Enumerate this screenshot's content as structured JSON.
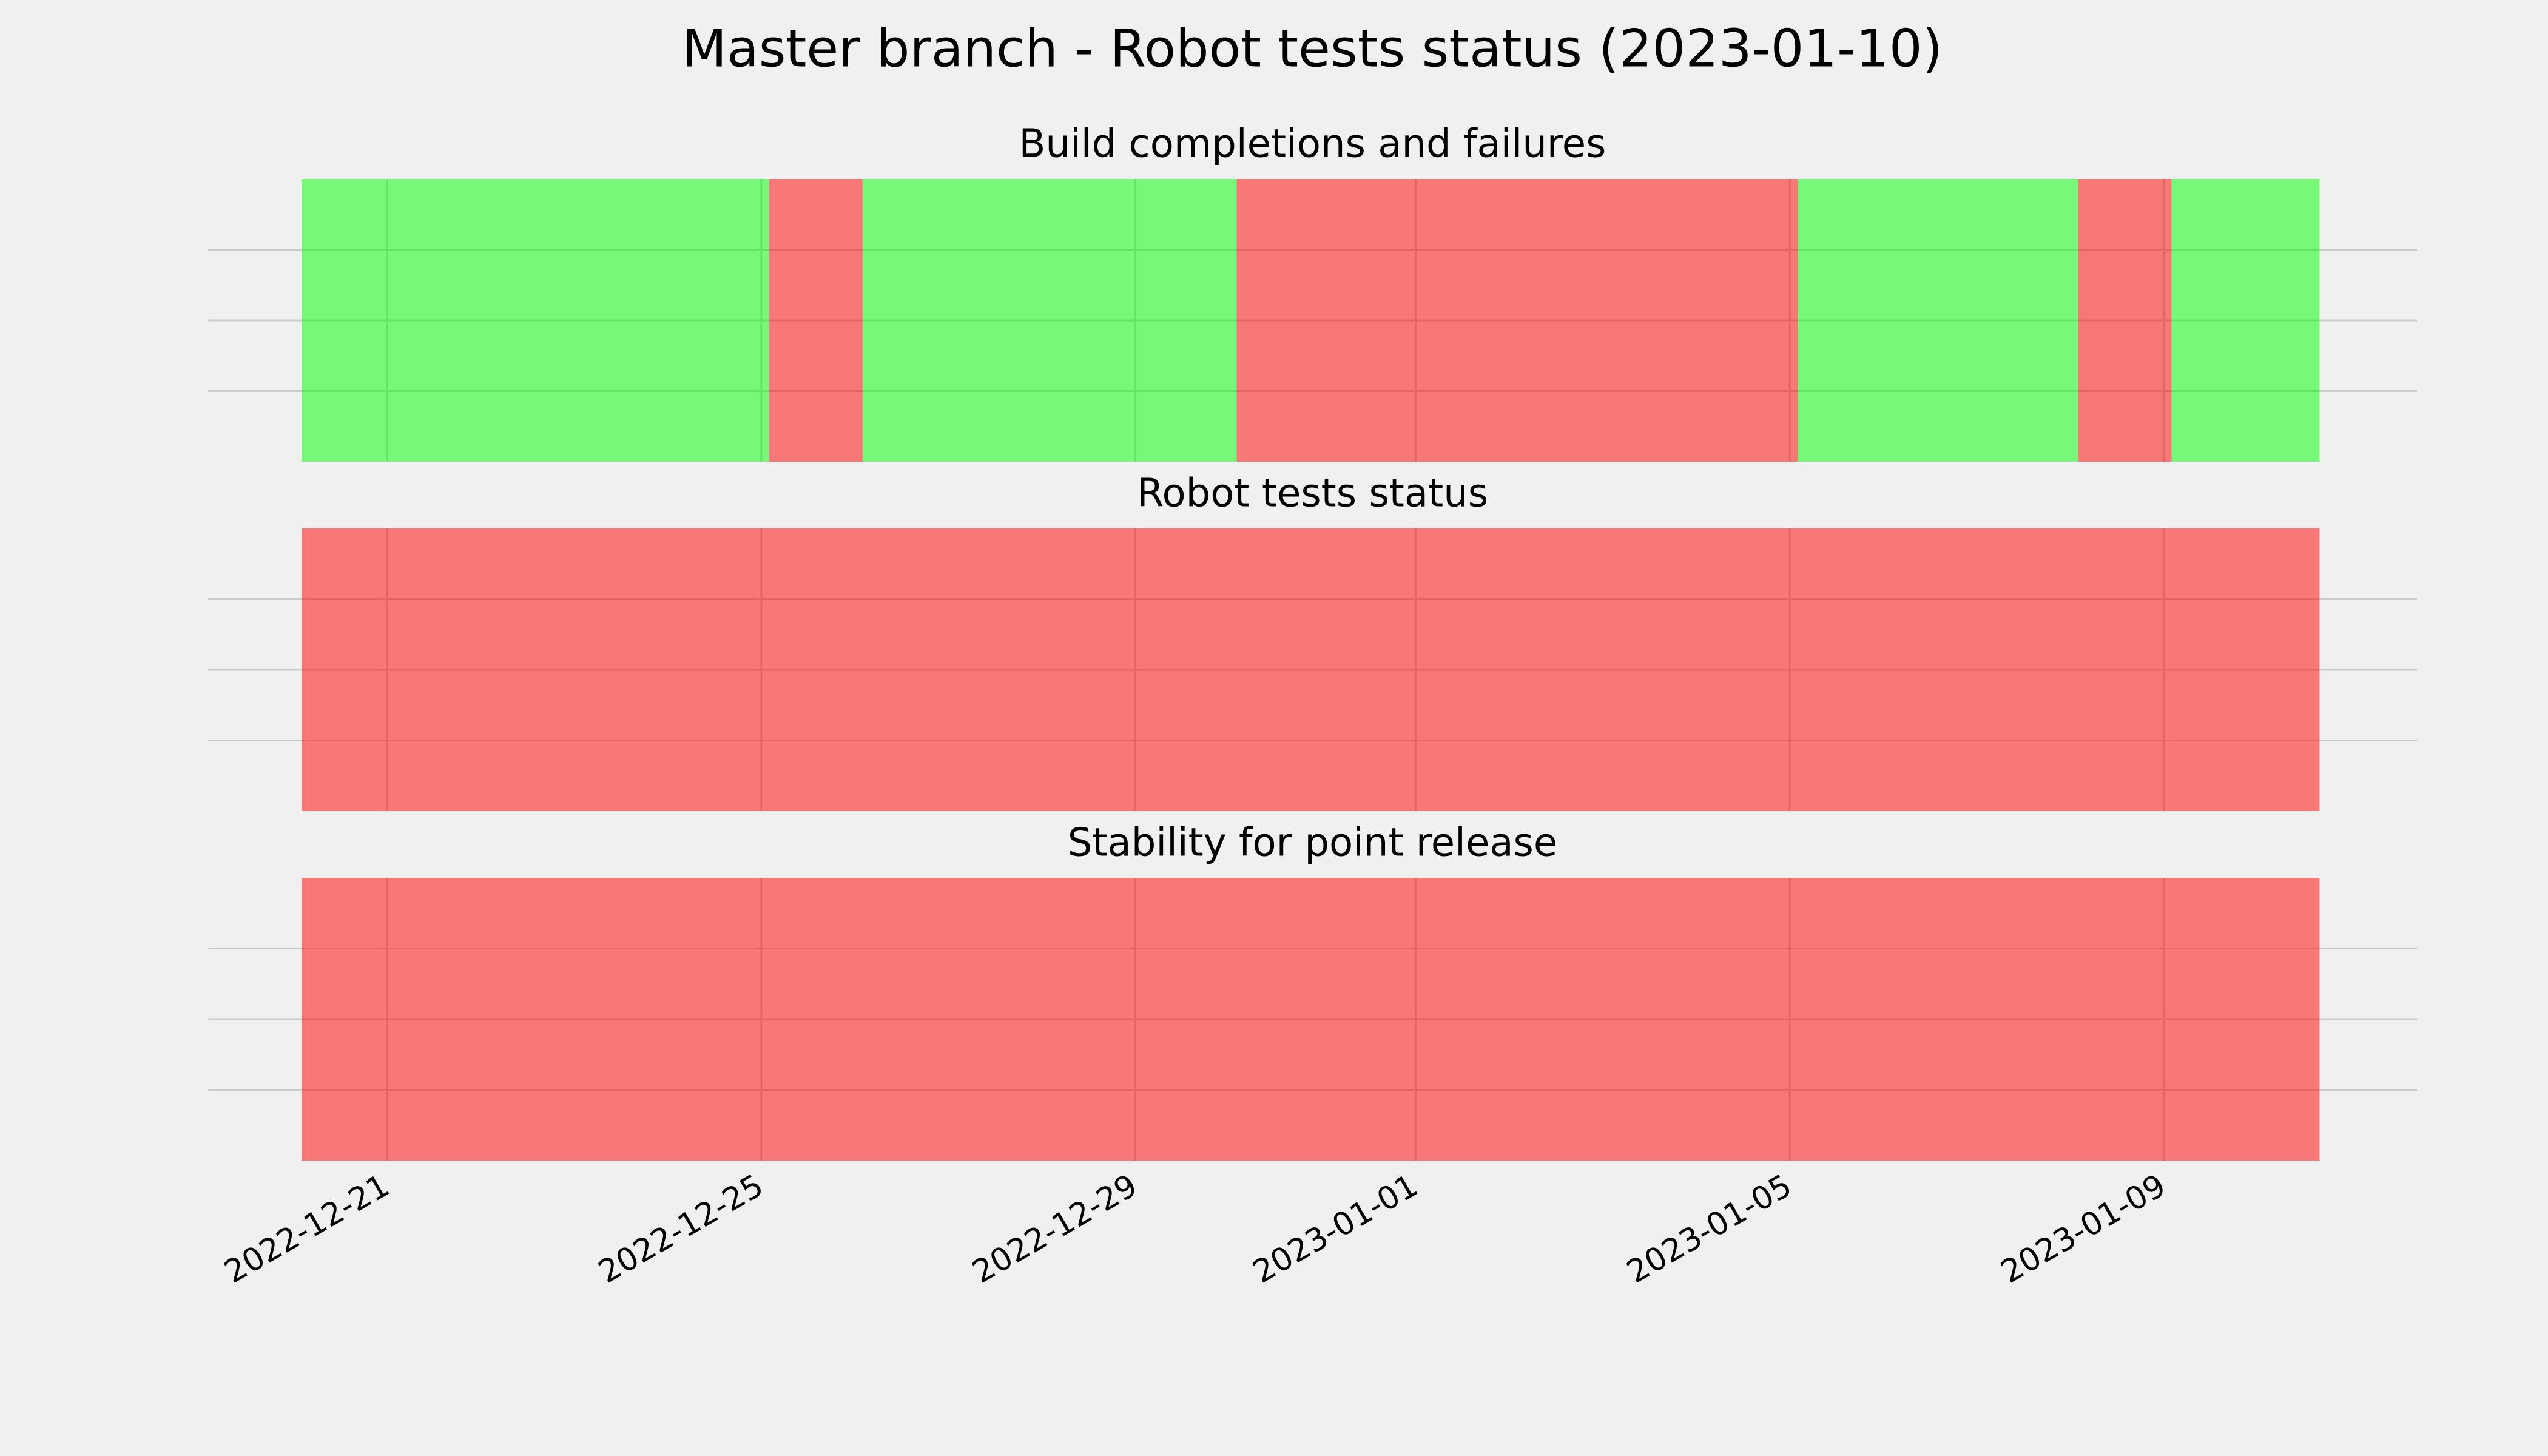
{
  "title": "Master branch - Robot tests status (2023-01-10)",
  "chart_data": [
    {
      "type": "timeline",
      "title": "Build completions and failures",
      "spans": [
        {
          "start": "2022-12-20T02:00",
          "end": "2022-12-25T02:00",
          "color": "#00ff00"
        },
        {
          "start": "2022-12-25T02:00",
          "end": "2022-12-26T02:00",
          "color": "#ff0000"
        },
        {
          "start": "2022-12-26T02:00",
          "end": "2022-12-30T02:00",
          "color": "#00ff00"
        },
        {
          "start": "2022-12-30T02:00",
          "end": "2023-01-05T02:00",
          "color": "#ff0000"
        },
        {
          "start": "2023-01-05T02:00",
          "end": "2023-01-08T02:00",
          "color": "#00ff00"
        },
        {
          "start": "2023-01-08T02:00",
          "end": "2023-01-09T02:00",
          "color": "#ff0000"
        },
        {
          "start": "2023-01-09T02:00",
          "end": "2023-01-10T16:00",
          "color": "#00ff00"
        }
      ],
      "xlim": [
        "2022-12-19T02:00",
        "2023-01-11T17:00"
      ],
      "xticks": [
        "2022-12-21",
        "2022-12-25",
        "2022-12-29",
        "2023-01-01",
        "2023-01-05",
        "2023-01-09"
      ],
      "grid": true
    },
    {
      "type": "timeline",
      "title": "Robot tests status",
      "spans": [
        {
          "start": "2022-12-20T02:00",
          "end": "2023-01-10T16:00",
          "color": "#ff0000"
        }
      ],
      "xlim": [
        "2022-12-19T02:00",
        "2023-01-11T17:00"
      ],
      "xticks": [
        "2022-12-21",
        "2022-12-25",
        "2022-12-29",
        "2023-01-01",
        "2023-01-05",
        "2023-01-09"
      ],
      "grid": true
    },
    {
      "type": "timeline",
      "title": "Stability for point release",
      "spans": [
        {
          "start": "2022-12-20T02:00",
          "end": "2023-01-10T16:00",
          "color": "#ff0000"
        }
      ],
      "xlim": [
        "2022-12-19T02:00",
        "2023-01-11T17:00"
      ],
      "xticks": [
        "2022-12-21",
        "2022-12-25",
        "2022-12-29",
        "2023-01-01",
        "2023-01-05",
        "2023-01-09"
      ],
      "grid": true
    }
  ]
}
